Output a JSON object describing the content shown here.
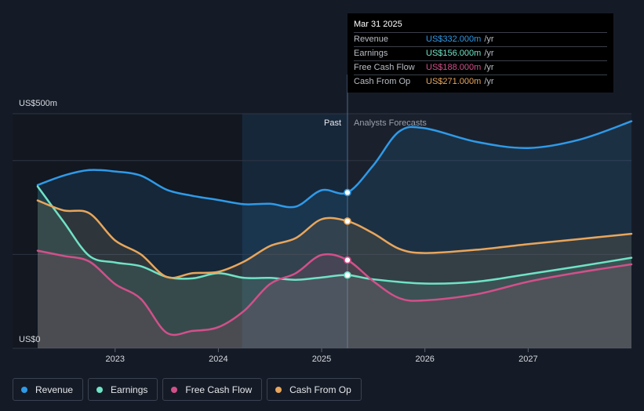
{
  "tooltip": {
    "date": "Mar 31 2025",
    "rows": [
      {
        "name": "Revenue",
        "value": "US$332.000m",
        "unit": "/yr",
        "color": "#2f9ae8"
      },
      {
        "name": "Earnings",
        "value": "US$156.000m",
        "unit": "/yr",
        "color": "#6fe3c6"
      },
      {
        "name": "Free Cash Flow",
        "value": "US$188.000m",
        "unit": "/yr",
        "color": "#d2508a"
      },
      {
        "name": "Cash From Op",
        "value": "US$271.000m",
        "unit": "/yr",
        "color": "#e8a65c"
      }
    ]
  },
  "legend": [
    {
      "label": "Revenue",
      "color": "#2f9ae8"
    },
    {
      "label": "Earnings",
      "color": "#6fe3c6"
    },
    {
      "label": "Free Cash Flow",
      "color": "#d2508a"
    },
    {
      "label": "Cash From Op",
      "color": "#e8a65c"
    }
  ],
  "chart_data": {
    "type": "line",
    "y_top_label": "US$500m",
    "y_bottom_label": "US$0",
    "ylim": [
      0,
      500
    ],
    "xlim": [
      2022.25,
      2028.0
    ],
    "x_ticks": [
      {
        "label": "2023",
        "x": 2023.0
      },
      {
        "label": "2024",
        "x": 2024.0
      },
      {
        "label": "2025",
        "x": 2025.0
      },
      {
        "label": "2026",
        "x": 2026.0
      },
      {
        "label": "2027",
        "x": 2027.0
      }
    ],
    "past_label": "Past",
    "forecast_label": "Analysts Forecasts",
    "divider_x": 2025.25,
    "shade_start_x": 2024.23,
    "series": [
      {
        "name": "Revenue",
        "color": "#2f9ae8",
        "points": [
          [
            2022.25,
            348
          ],
          [
            2022.5,
            368
          ],
          [
            2022.75,
            380
          ],
          [
            2023.0,
            377
          ],
          [
            2023.25,
            368
          ],
          [
            2023.5,
            338
          ],
          [
            2023.75,
            325
          ],
          [
            2024.0,
            316
          ],
          [
            2024.25,
            307
          ],
          [
            2024.5,
            308
          ],
          [
            2024.75,
            302
          ],
          [
            2025.0,
            337
          ],
          [
            2025.25,
            332
          ],
          [
            2025.5,
            390
          ],
          [
            2025.75,
            462
          ],
          [
            2026.0,
            469
          ],
          [
            2026.5,
            440
          ],
          [
            2027.0,
            427
          ],
          [
            2027.5,
            445
          ],
          [
            2028.0,
            484
          ]
        ]
      },
      {
        "name": "Earnings",
        "color": "#6fe3c6",
        "points": [
          [
            2022.25,
            345
          ],
          [
            2022.5,
            270
          ],
          [
            2022.75,
            197
          ],
          [
            2023.0,
            183
          ],
          [
            2023.25,
            175
          ],
          [
            2023.5,
            152
          ],
          [
            2023.75,
            149
          ],
          [
            2024.0,
            160
          ],
          [
            2024.25,
            150
          ],
          [
            2024.5,
            150
          ],
          [
            2024.75,
            146
          ],
          [
            2025.0,
            151
          ],
          [
            2025.25,
            156
          ],
          [
            2025.5,
            147
          ],
          [
            2026.0,
            138
          ],
          [
            2026.5,
            142
          ],
          [
            2027.0,
            158
          ],
          [
            2027.5,
            175
          ],
          [
            2028.0,
            193
          ]
        ]
      },
      {
        "name": "Free Cash Flow",
        "color": "#d2508a",
        "points": [
          [
            2022.25,
            208
          ],
          [
            2022.5,
            197
          ],
          [
            2022.75,
            185
          ],
          [
            2023.0,
            137
          ],
          [
            2023.25,
            105
          ],
          [
            2023.5,
            33
          ],
          [
            2023.75,
            37
          ],
          [
            2024.0,
            45
          ],
          [
            2024.25,
            80
          ],
          [
            2024.5,
            137
          ],
          [
            2024.75,
            160
          ],
          [
            2025.0,
            199
          ],
          [
            2025.25,
            188
          ],
          [
            2025.5,
            143
          ],
          [
            2025.75,
            107
          ],
          [
            2026.0,
            102
          ],
          [
            2026.5,
            115
          ],
          [
            2027.0,
            142
          ],
          [
            2027.5,
            162
          ],
          [
            2028.0,
            179
          ]
        ]
      },
      {
        "name": "Cash From Op",
        "color": "#e8a65c",
        "points": [
          [
            2022.25,
            315
          ],
          [
            2022.5,
            294
          ],
          [
            2022.75,
            288
          ],
          [
            2023.0,
            230
          ],
          [
            2023.25,
            200
          ],
          [
            2023.5,
            152
          ],
          [
            2023.75,
            160
          ],
          [
            2024.0,
            163
          ],
          [
            2024.25,
            185
          ],
          [
            2024.5,
            218
          ],
          [
            2024.75,
            235
          ],
          [
            2025.0,
            275
          ],
          [
            2025.25,
            271
          ],
          [
            2025.5,
            245
          ],
          [
            2025.75,
            212
          ],
          [
            2026.0,
            203
          ],
          [
            2026.5,
            210
          ],
          [
            2027.0,
            222
          ],
          [
            2027.5,
            233
          ],
          [
            2028.0,
            244
          ]
        ]
      }
    ]
  }
}
